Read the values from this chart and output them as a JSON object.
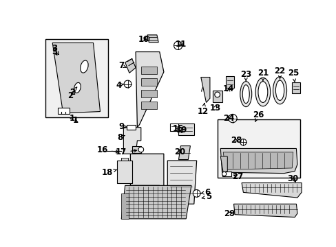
{
  "bg_color": "#ffffff",
  "fig_width": 4.89,
  "fig_height": 3.6,
  "dpi": 100,
  "line_color": "#000000",
  "text_color": "#000000",
  "font_size": 8.5,
  "font_size_small": 7.0
}
